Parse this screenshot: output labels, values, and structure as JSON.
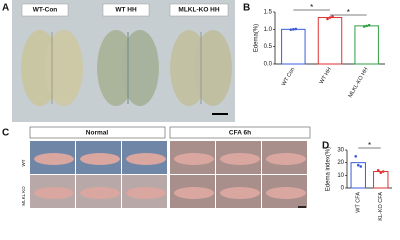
{
  "panels": {
    "a": {
      "letter": "A",
      "labels": [
        "WT-Con",
        "WT HH",
        "MLKL-KO HH"
      ]
    },
    "c": {
      "letter": "C",
      "headers": [
        "Normal",
        "CFA 6h"
      ],
      "rows": [
        "WT",
        "MLKL KO"
      ]
    }
  },
  "chart_data": [
    {
      "type": "bar",
      "panel_label": "B",
      "ylabel": "Edema(%)",
      "categories": [
        "WT Con",
        "WT HH",
        "MLKL-KO HH"
      ],
      "values": [
        1.0,
        1.34,
        1.1
      ],
      "colors": [
        "#3b5bdb",
        "#e03131",
        "#2f9e44"
      ],
      "points": [
        [
          0.99,
          1.0,
          1.01
        ],
        [
          1.3,
          1.34,
          1.37
        ],
        [
          1.08,
          1.1,
          1.12
        ]
      ],
      "ylim": [
        0,
        1.5
      ],
      "yticks": [
        {
          "value": 0,
          "label": "0.0"
        },
        {
          "value": 0.5,
          "label": "0.5"
        },
        {
          "value": 1,
          "label": "1.0"
        },
        {
          "value": 1.5,
          "label": "1.5"
        }
      ],
      "annotations": [
        "*",
        "*"
      ]
    },
    {
      "type": "bar",
      "panel_label": "D",
      "ylabel": "Edema index(%)",
      "categories": [
        "WT CFA",
        "MLKL-KO CFA"
      ],
      "values": [
        20,
        13
      ],
      "colors": [
        "#3b5bdb",
        "#e03131"
      ],
      "points": [
        [
          25,
          18,
          17
        ],
        [
          14,
          12,
          13
        ]
      ],
      "ylim": [
        0,
        30
      ],
      "yticks": [
        0,
        10,
        20,
        30
      ],
      "annotations": [
        "*"
      ]
    }
  ]
}
